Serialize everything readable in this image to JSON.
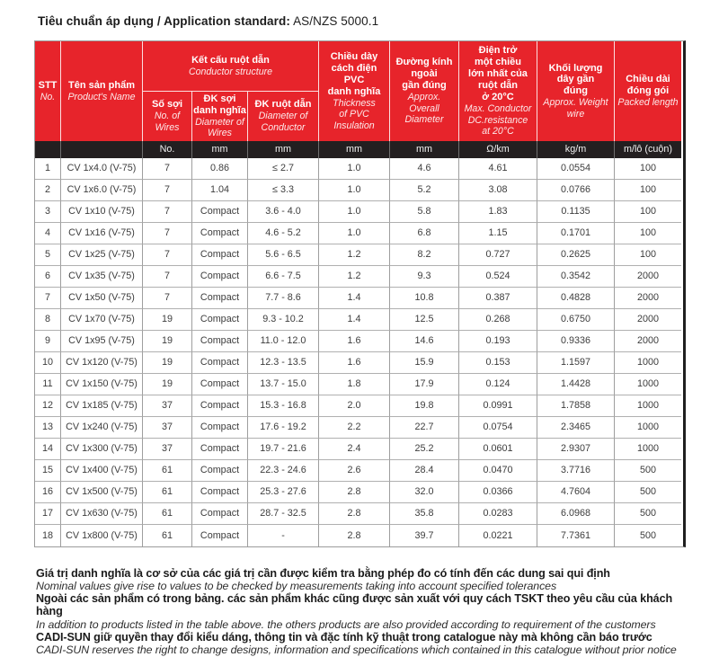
{
  "title": {
    "label": "Tiêu chuẩn áp dụng / Application standard:",
    "value": "AS/NZS 5000.1"
  },
  "colors": {
    "header_red": "#e7242b",
    "units_black": "#231f20",
    "body_text": "#3d3d3d",
    "grid_line": "#9e9e9e"
  },
  "table": {
    "header": {
      "stt": {
        "vn": "STT",
        "en": "No."
      },
      "product": {
        "vn": "Tên sản phẩm",
        "en": "Product's Name"
      },
      "conductor_group": {
        "vn": "Kết cấu ruột dẫn",
        "en": "Conductor structure"
      },
      "wires": {
        "vn": "Số sợi",
        "en": "No. of\nWires"
      },
      "wire_dia": {
        "vn": "ĐK sợi\ndanh nghĩa",
        "en": "Diameter of\nWires"
      },
      "conductor_dia": {
        "vn": "ĐK ruột dẫn",
        "en": "Diameter of\nConductor"
      },
      "insulation": {
        "vn": "Chiều dày\ncách điện\nPVC\ndanh nghĩa",
        "en": "Thickness\nof PVC\nInsulation"
      },
      "overall_dia": {
        "vn": "Đường kính\nngoài\ngần đúng",
        "en": "Approx.\nOverall\nDiameter"
      },
      "resistance": {
        "vn": "Điện trở\nmột chiều\nlớn nhất của\nruột dẫn\nở 20°C",
        "en": "Max. Conductor\nDC.resistance\nat 20°C"
      },
      "weight": {
        "vn": "Khối lượng\ndây gần\nđúng",
        "en": "Approx. Weight\nwire"
      },
      "packed": {
        "vn": "Chiều dài\nđóng gói",
        "en": "Packed length"
      }
    },
    "units": [
      "",
      "",
      "No.",
      "mm",
      "mm",
      "mm",
      "mm",
      "Ω/km",
      "kg/m",
      "m/lô (cuộn)"
    ],
    "rows": [
      [
        "1",
        "CV 1x4.0 (V-75)",
        "7",
        "0.86",
        "≤ 2.7",
        "1.0",
        "4.6",
        "4.61",
        "0.0554",
        "100"
      ],
      [
        "2",
        "CV 1x6.0 (V-75)",
        "7",
        "1.04",
        "≤ 3.3",
        "1.0",
        "5.2",
        "3.08",
        "0.0766",
        "100"
      ],
      [
        "3",
        "CV 1x10 (V-75)",
        "7",
        "Compact",
        "3.6 - 4.0",
        "1.0",
        "5.8",
        "1.83",
        "0.1135",
        "100"
      ],
      [
        "4",
        "CV 1x16 (V-75)",
        "7",
        "Compact",
        "4.6 - 5.2",
        "1.0",
        "6.8",
        "1.15",
        "0.1701",
        "100"
      ],
      [
        "5",
        "CV 1x25 (V-75)",
        "7",
        "Compact",
        "5.6 - 6.5",
        "1.2",
        "8.2",
        "0.727",
        "0.2625",
        "100"
      ],
      [
        "6",
        "CV 1x35 (V-75)",
        "7",
        "Compact",
        "6.6 - 7.5",
        "1.2",
        "9.3",
        "0.524",
        "0.3542",
        "2000"
      ],
      [
        "7",
        "CV 1x50 (V-75)",
        "7",
        "Compact",
        "7.7 - 8.6",
        "1.4",
        "10.8",
        "0.387",
        "0.4828",
        "2000"
      ],
      [
        "8",
        "CV 1x70 (V-75)",
        "19",
        "Compact",
        "9.3 - 10.2",
        "1.4",
        "12.5",
        "0.268",
        "0.6750",
        "2000"
      ],
      [
        "9",
        "CV 1x95 (V-75)",
        "19",
        "Compact",
        "11.0 - 12.0",
        "1.6",
        "14.6",
        "0.193",
        "0.9336",
        "2000"
      ],
      [
        "10",
        "CV 1x120 (V-75)",
        "19",
        "Compact",
        "12.3 - 13.5",
        "1.6",
        "15.9",
        "0.153",
        "1.1597",
        "1000"
      ],
      [
        "11",
        "CV 1x150 (V-75)",
        "19",
        "Compact",
        "13.7 - 15.0",
        "1.8",
        "17.9",
        "0.124",
        "1.4428",
        "1000"
      ],
      [
        "12",
        "CV 1x185 (V-75)",
        "37",
        "Compact",
        "15.3 - 16.8",
        "2.0",
        "19.8",
        "0.0991",
        "1.7858",
        "1000"
      ],
      [
        "13",
        "CV 1x240 (V-75)",
        "37",
        "Compact",
        "17.6 - 19.2",
        "2.2",
        "22.7",
        "0.0754",
        "2.3465",
        "1000"
      ],
      [
        "14",
        "CV 1x300 (V-75)",
        "37",
        "Compact",
        "19.7 - 21.6",
        "2.4",
        "25.2",
        "0.0601",
        "2.9307",
        "1000"
      ],
      [
        "15",
        "CV 1x400 (V-75)",
        "61",
        "Compact",
        "22.3 - 24.6",
        "2.6",
        "28.4",
        "0.0470",
        "3.7716",
        "500"
      ],
      [
        "16",
        "CV 1x500 (V-75)",
        "61",
        "Compact",
        "25.3 - 27.6",
        "2.8",
        "32.0",
        "0.0366",
        "4.7604",
        "500"
      ],
      [
        "17",
        "CV 1x630 (V-75)",
        "61",
        "Compact",
        "28.7 - 32.5",
        "2.8",
        "35.8",
        "0.0283",
        "6.0968",
        "500"
      ],
      [
        "18",
        "CV 1x800 (V-75)",
        "61",
        "Compact",
        "-",
        "2.8",
        "39.7",
        "0.0221",
        "7.7361",
        "500"
      ]
    ]
  },
  "notes": [
    {
      "vn": "Giá trị danh nghĩa là cơ sở của các giá trị cần được kiểm tra bằng phép đo có tính đến các dung sai qui định",
      "en": "Nominal values give rise to values to be checked by measurements taking into account specified tolerances"
    },
    {
      "vn": "Ngoài các sản phẩm có trong bảng. các sản phẩm khác cũng được sản xuất với quy cách TSKT theo yêu cầu của khách hàng",
      "en": "In addition to products listed in the table above. the others products are also provided according to requirement of the customers"
    },
    {
      "vn": "CADI-SUN giữ quyền thay đổi kiểu dáng, thông tin và đặc tính kỹ thuật trong catalogue này mà không cần báo trước",
      "en": "CADI-SUN reserves the right to change designs, information and specifications which contained in this catalogue without prior notice"
    }
  ]
}
